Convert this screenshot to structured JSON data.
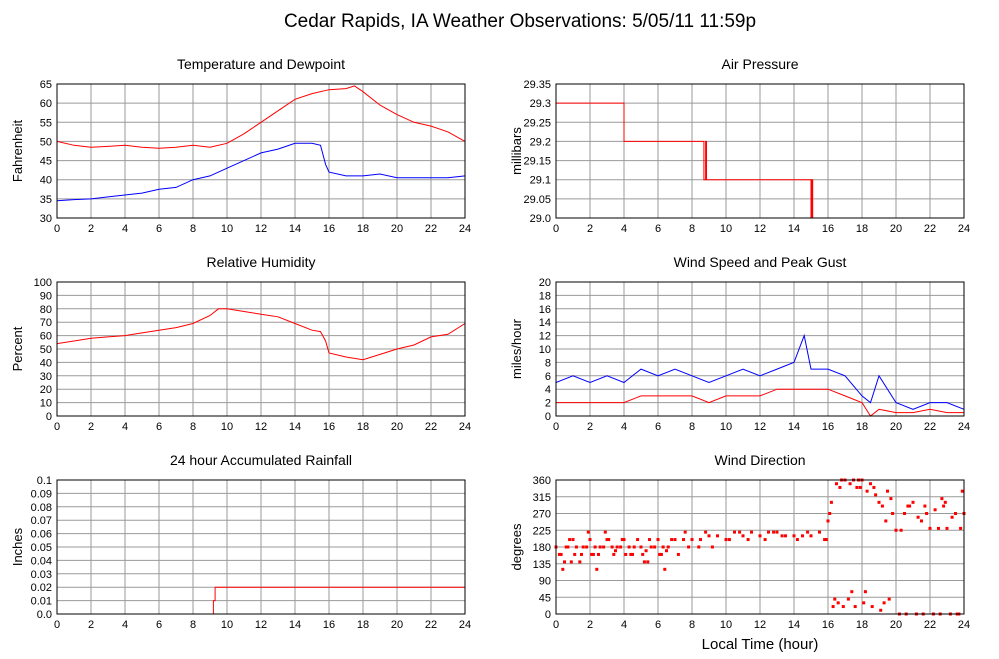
{
  "page_title": "Cedar Rapids, IA Weather Observations: 5/05/11 11:59p",
  "x_axis_label": "Local Time (hour)",
  "colors": {
    "primary": "#ff0000",
    "secondary": "#0000ff",
    "grid": "#9a9a9a"
  },
  "chart_data": [
    {
      "id": "temp",
      "type": "line",
      "title": "Temperature and Dewpoint",
      "xlabel": "",
      "ylabel": "Fahrenheit",
      "xlim": [
        0,
        24
      ],
      "ylim": [
        30,
        65
      ],
      "x_ticks": [
        0,
        2,
        4,
        6,
        8,
        10,
        12,
        14,
        16,
        18,
        20,
        22,
        24
      ],
      "y_ticks": [
        30,
        35,
        40,
        45,
        50,
        55,
        60,
        65
      ],
      "y_tick_labels": [
        "30",
        "35",
        "40",
        "45",
        "50",
        "55",
        "60",
        "65"
      ],
      "grid": true,
      "series": [
        {
          "color": "#ff0000",
          "x": [
            0,
            1,
            2,
            3,
            4,
            5,
            6,
            7,
            8,
            9,
            10,
            11,
            12,
            13,
            14,
            15,
            16,
            17,
            17.5,
            18,
            19,
            20,
            21,
            22,
            23,
            24
          ],
          "y": [
            50,
            49,
            48.5,
            48.7,
            49,
            48.5,
            48.2,
            48.5,
            49,
            48.5,
            49.5,
            52,
            55,
            58,
            61,
            62.5,
            63.5,
            63.8,
            64.5,
            63,
            59.5,
            57,
            55,
            54,
            52.5,
            50
          ]
        },
        {
          "color": "#0000ff",
          "x": [
            0,
            1,
            2,
            3,
            4,
            5,
            6,
            7,
            8,
            9,
            10,
            11,
            12,
            13,
            14,
            15,
            15.5,
            15.8,
            16,
            17,
            18,
            19,
            20,
            21,
            22,
            23,
            24
          ],
          "y": [
            34.5,
            34.8,
            35,
            35.5,
            36,
            36.5,
            37.5,
            38,
            40,
            41,
            43,
            45,
            47,
            48,
            49.5,
            49.5,
            49,
            44,
            42,
            41,
            41,
            41.5,
            40.5,
            40.5,
            40.5,
            40.5,
            41
          ]
        }
      ]
    },
    {
      "id": "pressure",
      "type": "line",
      "title": "Air Pressure",
      "xlabel": "",
      "ylabel": "millibars",
      "xlim": [
        0,
        24
      ],
      "ylim": [
        29.0,
        29.35
      ],
      "x_ticks": [
        0,
        2,
        4,
        6,
        8,
        10,
        12,
        14,
        16,
        18,
        20,
        22,
        24
      ],
      "y_ticks": [
        29.0,
        29.05,
        29.1,
        29.15,
        29.2,
        29.25,
        29.3,
        29.35
      ],
      "y_tick_labels": [
        "29.0",
        "29.05",
        "29.1",
        "29.15",
        "29.2",
        "29.25",
        "29.3",
        "29.35"
      ],
      "grid": true,
      "series": [
        {
          "color": "#ff0000",
          "x": [
            0,
            4,
            4,
            8.7,
            8.7,
            8.8,
            8.8,
            8.85,
            8.85,
            8.9,
            8.9,
            15,
            15,
            15.05,
            15.05,
            15.1,
            15.1,
            24
          ],
          "y": [
            29.3,
            29.3,
            29.2,
            29.2,
            29.1,
            29.1,
            29.2,
            29.2,
            29.1,
            29.1,
            29.1,
            29.1,
            29.0,
            29.0,
            29.1,
            29.1,
            29.0,
            29.0
          ]
        }
      ]
    },
    {
      "id": "humidity",
      "type": "line",
      "title": "Relative Humidity",
      "xlabel": "",
      "ylabel": "Percent",
      "xlim": [
        0,
        24
      ],
      "ylim": [
        0,
        100
      ],
      "x_ticks": [
        0,
        2,
        4,
        6,
        8,
        10,
        12,
        14,
        16,
        18,
        20,
        22,
        24
      ],
      "y_ticks": [
        0,
        10,
        20,
        30,
        40,
        50,
        60,
        70,
        80,
        90,
        100
      ],
      "y_tick_labels": [
        "0",
        "10",
        "20",
        "30",
        "40",
        "50",
        "60",
        "70",
        "80",
        "90",
        "100"
      ],
      "grid": true,
      "series": [
        {
          "color": "#ff0000",
          "x": [
            0,
            1,
            2,
            3,
            4,
            5,
            6,
            7,
            8,
            9,
            9.5,
            10,
            11,
            12,
            13,
            14,
            15,
            15.5,
            15.8,
            16,
            17,
            18,
            19,
            20,
            21,
            22,
            23,
            24
          ],
          "y": [
            54,
            56,
            58,
            59,
            60,
            62,
            64,
            66,
            69,
            75,
            80,
            80,
            78,
            76,
            74,
            69,
            64,
            63,
            56,
            47,
            44,
            42,
            46,
            50,
            53,
            59,
            61,
            69
          ]
        }
      ]
    },
    {
      "id": "wind",
      "type": "line",
      "title": "Wind Speed and Peak Gust",
      "xlabel": "",
      "ylabel": "miles/hour",
      "xlim": [
        0,
        24
      ],
      "ylim": [
        0,
        20
      ],
      "x_ticks": [
        0,
        2,
        4,
        6,
        8,
        10,
        12,
        14,
        16,
        18,
        20,
        22,
        24
      ],
      "y_ticks": [
        0,
        2,
        4,
        6,
        8,
        10,
        12,
        14,
        16,
        18,
        20
      ],
      "y_tick_labels": [
        "0",
        "2",
        "4",
        "6",
        "8",
        "10",
        "12",
        "14",
        "16",
        "18",
        "20"
      ],
      "grid": true,
      "series": [
        {
          "color": "#0000ff",
          "x": [
            0,
            1,
            2,
            3,
            4,
            5,
            6,
            7,
            8,
            9,
            10,
            11,
            12,
            13,
            14,
            14.6,
            15,
            16,
            17,
            18,
            18.5,
            19,
            20,
            21,
            22,
            23,
            24
          ],
          "y": [
            5,
            6,
            5,
            6,
            5,
            7,
            6,
            7,
            6,
            5,
            6,
            7,
            6,
            7,
            8,
            12,
            7,
            7,
            6,
            3,
            2,
            6,
            2,
            1,
            2,
            2,
            1
          ]
        },
        {
          "color": "#ff0000",
          "x": [
            0,
            1,
            2,
            3,
            4,
            5,
            6,
            7,
            8,
            9,
            10,
            11,
            12,
            13,
            14,
            15,
            16,
            17,
            18,
            18.5,
            19,
            20,
            21,
            22,
            23,
            24
          ],
          "y": [
            2,
            2,
            2,
            2,
            2,
            3,
            3,
            3,
            3,
            2,
            3,
            3,
            3,
            4,
            4,
            4,
            4,
            3,
            2,
            0,
            1,
            0.5,
            0.5,
            1,
            0.5,
            0.5
          ]
        }
      ]
    },
    {
      "id": "rain",
      "type": "line",
      "title": "24 hour Accumulated Rainfall",
      "xlabel": "",
      "ylabel": "Inches",
      "xlim": [
        0,
        24
      ],
      "ylim": [
        0,
        0.1
      ],
      "x_ticks": [
        0,
        2,
        4,
        6,
        8,
        10,
        12,
        14,
        16,
        18,
        20,
        22,
        24
      ],
      "y_ticks": [
        0,
        0.01,
        0.02,
        0.03,
        0.04,
        0.05,
        0.06,
        0.07,
        0.08,
        0.09,
        0.1
      ],
      "y_tick_labels": [
        "0.0",
        "0.01",
        "0.02",
        "0.03",
        "0.04",
        "0.05",
        "0.06",
        "0.07",
        "0.08",
        "0.09",
        "0.1"
      ],
      "grid": true,
      "series": [
        {
          "color": "#ff0000",
          "x": [
            0,
            9.2,
            9.2,
            9.3,
            9.3,
            24
          ],
          "y": [
            0,
            0,
            0.01,
            0.01,
            0.02,
            0.02
          ]
        }
      ]
    },
    {
      "id": "direction",
      "type": "scatter",
      "title": "Wind Direction",
      "xlabel": "Local Time (hour)",
      "ylabel": "degrees",
      "xlim": [
        0,
        24
      ],
      "ylim": [
        0,
        360
      ],
      "x_ticks": [
        0,
        2,
        4,
        6,
        8,
        10,
        12,
        14,
        16,
        18,
        20,
        22,
        24
      ],
      "y_ticks": [
        0,
        45,
        90,
        135,
        180,
        225,
        270,
        315,
        360
      ],
      "y_tick_labels": [
        "0",
        "45",
        "90",
        "135",
        "180",
        "225",
        "270",
        "315",
        "360"
      ],
      "grid": true,
      "series": [
        {
          "color": "#ff0000",
          "x": [
            0,
            0.3,
            0.5,
            0.7,
            1,
            1.2,
            1.5,
            1.8,
            2,
            2.3,
            2.5,
            2.8,
            3,
            3.3,
            3.5,
            3.8,
            4,
            4.3,
            4.5,
            4.8,
            5,
            5.3,
            5.5,
            5.8,
            6,
            6.3,
            6.5,
            6.8,
            7,
            7.5,
            8,
            8.5,
            9,
            9.5,
            10,
            10.5,
            11,
            11.5,
            12,
            12.5,
            13,
            13.5,
            14,
            14.5,
            15,
            15.5,
            15.8,
            16,
            16.2,
            16.5,
            16.8,
            17,
            17.3,
            17.5,
            17.8,
            18,
            18.3,
            18.5,
            18.8,
            19,
            19.2,
            19.5,
            19.8,
            20,
            20.3,
            20.5,
            20.8,
            21,
            21.3,
            21.5,
            21.8,
            22,
            22.3,
            22.5,
            22.8,
            23,
            23.3,
            23.5,
            23.8,
            24,
            0.2,
            0.6,
            1.1,
            1.6,
            2.1,
            2.6,
            3.1,
            3.6,
            4.1,
            4.6,
            5.1,
            5.6,
            6.1,
            6.6,
            7.2,
            7.8,
            8.4,
            9.2,
            10.2,
            11.3,
            12.3,
            13.3,
            14.2,
            16.3,
            16.6,
            16.9,
            17.2,
            17.6,
            18.1,
            18.6,
            19.1,
            19.6,
            20.2,
            21.2,
            22.2,
            23.2,
            23.7,
            0.4,
            1.4,
            2.4,
            3.4,
            4.4,
            5.4,
            6.4,
            16.4,
            17.4,
            18.2,
            19.3,
            20.6,
            21.6,
            22.6,
            23.6,
            0.8,
            1.9,
            2.9,
            3.9,
            7.6,
            8.8,
            10.8,
            12.8,
            14.8,
            16.7,
            17.7,
            18.7,
            19.7,
            20.7,
            21.7,
            22.7,
            23.9,
            0.9,
            2.2,
            5.2,
            6.2,
            15.9,
            16.1,
            17.9,
            19.4,
            22.9
          ],
          "y": [
            180,
            160,
            140,
            180,
            200,
            180,
            160,
            180,
            200,
            180,
            160,
            180,
            200,
            180,
            170,
            180,
            200,
            180,
            160,
            200,
            180,
            170,
            200,
            180,
            200,
            180,
            170,
            200,
            200,
            200,
            200,
            200,
            210,
            210,
            200,
            220,
            210,
            220,
            210,
            220,
            220,
            210,
            210,
            210,
            210,
            220,
            200,
            250,
            300,
            350,
            360,
            360,
            350,
            360,
            360,
            360,
            330,
            350,
            320,
            300,
            290,
            330,
            270,
            225,
            225,
            270,
            290,
            300,
            260,
            250,
            270,
            230,
            280,
            230,
            290,
            230,
            260,
            270,
            230,
            270,
            160,
            180,
            160,
            180,
            160,
            180,
            200,
            180,
            160,
            180,
            160,
            180,
            160,
            180,
            160,
            180,
            180,
            180,
            200,
            200,
            200,
            210,
            200,
            20,
            30,
            20,
            40,
            20,
            30,
            20,
            10,
            40,
            0,
            0,
            0,
            0,
            0,
            120,
            140,
            120,
            160,
            160,
            140,
            120,
            40,
            60,
            60,
            30,
            0,
            0,
            0,
            0,
            200,
            220,
            220,
            200,
            220,
            220,
            220,
            220,
            220,
            340,
            340,
            340,
            310,
            290,
            290,
            310,
            330,
            140,
            160,
            140,
            160,
            200,
            270,
            340,
            250,
            300
          ]
        }
      ]
    }
  ]
}
